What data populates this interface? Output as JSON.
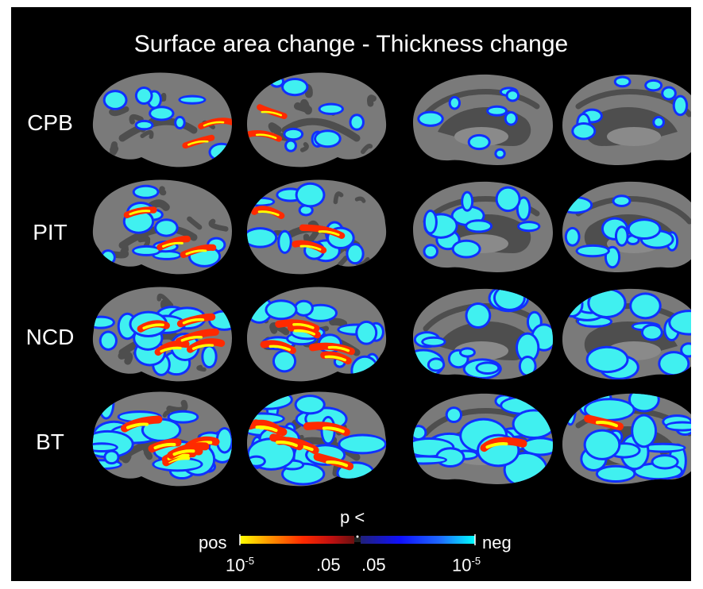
{
  "figure": {
    "title": "Surface area change - Thickness change",
    "rows": [
      "CPB",
      "PIT",
      "NCD",
      "BT"
    ],
    "colorbar": {
      "label": "p <",
      "left_end": "pos",
      "right_end": "neg",
      "ticks": {
        "t1_base": "10",
        "t1_exp": "-5",
        "t2": ".05",
        "t3": ".05",
        "t4_base": "10",
        "t4_exp": "-5"
      },
      "colors": {
        "pos": [
          "#ffff00",
          "#ff9900",
          "#ff2a00",
          "#c01010",
          "#6a1010"
        ],
        "neg": [
          "#20207a",
          "#1010ff",
          "#1e6cff",
          "#00ffff"
        ]
      }
    },
    "colors": {
      "background": "#000000",
      "brain_gyri": "#7a7a7a",
      "brain_sulci": "#4e4e4e",
      "positive": "#ff2a00",
      "positive_peak": "#ffff00",
      "negative": "#1030ff",
      "negative_peak": "#40f0f0"
    }
  }
}
